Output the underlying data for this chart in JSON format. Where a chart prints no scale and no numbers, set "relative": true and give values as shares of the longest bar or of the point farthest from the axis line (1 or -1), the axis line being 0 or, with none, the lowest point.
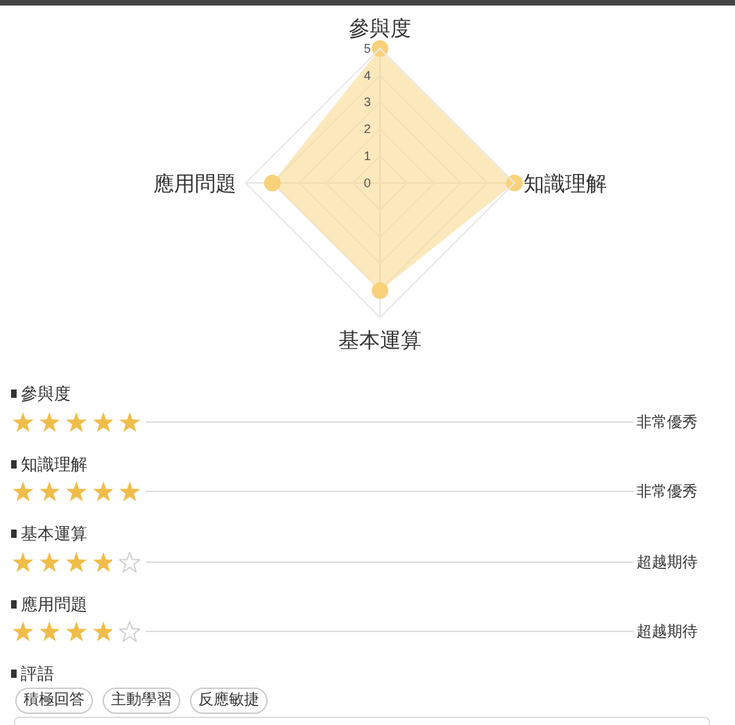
{
  "chart_data": [
    {
      "type": "radar",
      "categories": [
        "參與度",
        "知識理解",
        "基本運算",
        "應用問題"
      ],
      "series": [
        {
          "color": "#f8d27a",
          "values": [
            5,
            5,
            4,
            4
          ]
        }
      ],
      "ylim": [
        0,
        5
      ],
      "yticks": [
        0,
        1,
        2,
        3,
        4,
        5
      ],
      "grid": true,
      "marker": "circle"
    },
    {
      "type": "bar",
      "orientation": "horizontal",
      "relative": true,
      "categories": [
        "參與度",
        "知識理解",
        "基本運算",
        "應用問題"
      ],
      "values": [
        1,
        1,
        0.8,
        0.8
      ],
      "color": "#f0bd4a",
      "annotations": [
        "非常優秀",
        "非常優秀",
        "超越期待",
        "超越期待"
      ]
    },
    {
      "type": "other",
      "title": "評語",
      "annotations": [
        "積極回答",
        "主動學習",
        "反應敏捷"
      ]
    }
  ]
}
